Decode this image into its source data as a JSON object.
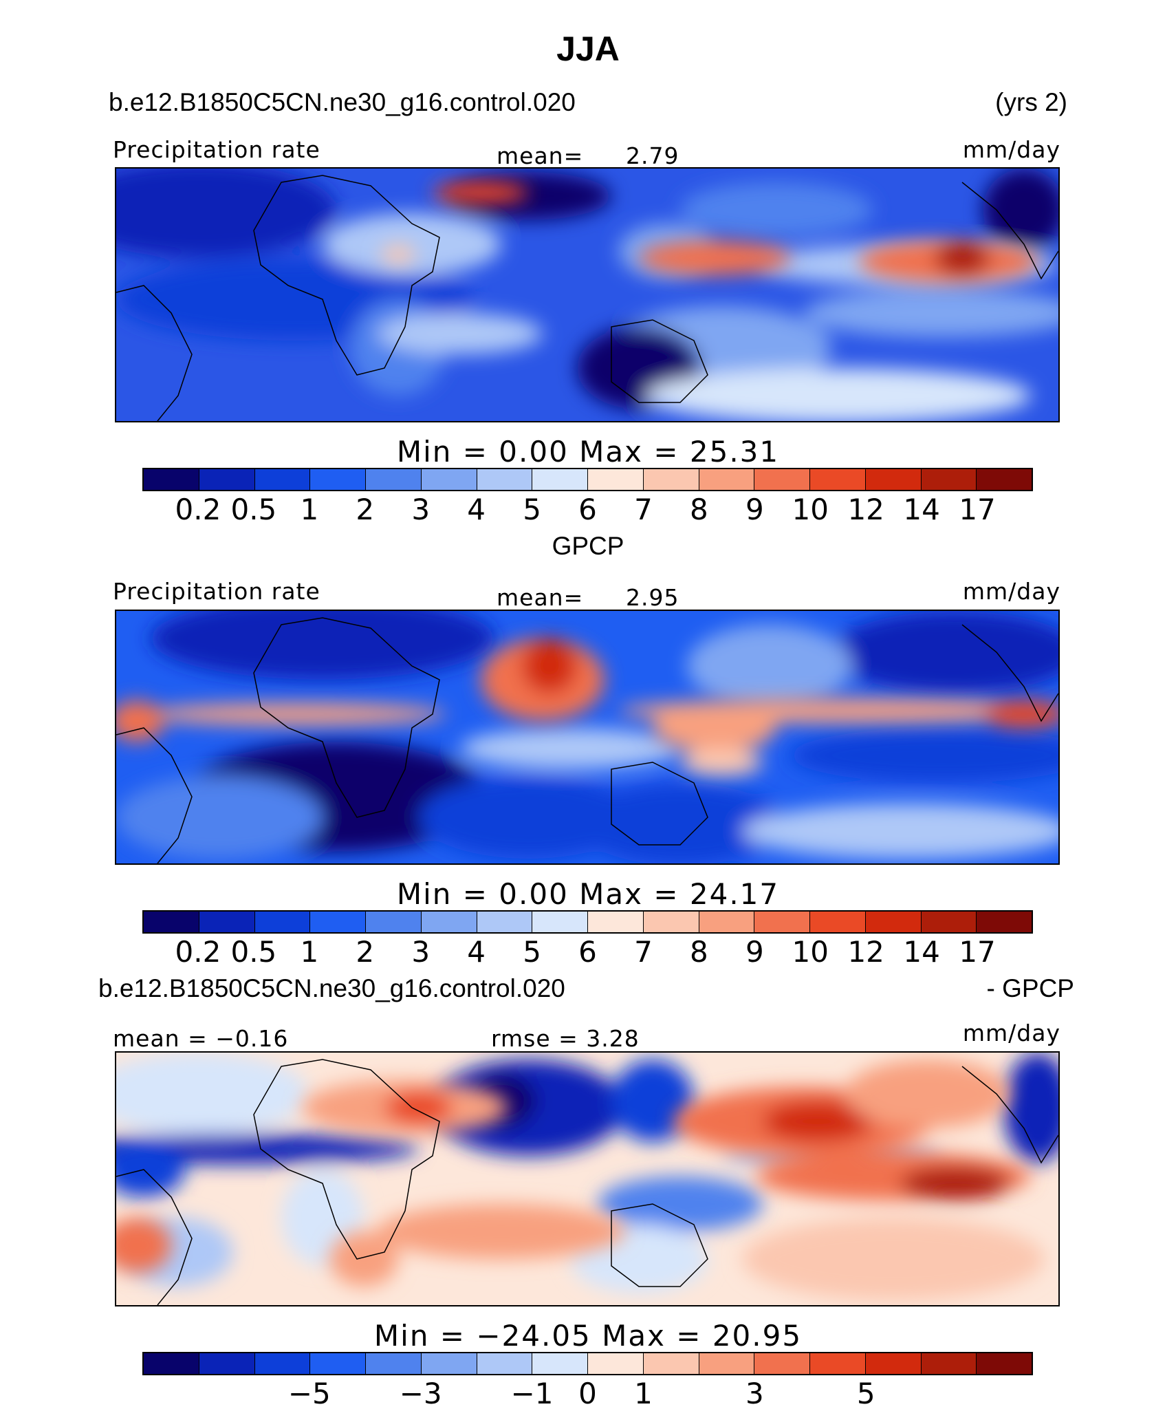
{
  "title": "JJA",
  "colors": [
    "#08036b",
    "#0a23b7",
    "#0d3fd9",
    "#1f5ef2",
    "#4f82ee",
    "#7fa6f2",
    "#aec8f7",
    "#d7e6fb",
    "#fde7da",
    "#fbc7b0",
    "#f8a07f",
    "#f1714e",
    "#ea4a26",
    "#d22a0d",
    "#ad1e0a",
    "#7e0a06"
  ],
  "panel1": {
    "case_name": "b.e12.B1850C5CN.ne30_g16.control.020",
    "years": "(yrs 2)",
    "variable": "Precipitation rate",
    "mean_label": "mean=",
    "mean_value": "2.79",
    "units": "mm/day",
    "minmax_text": "Min  =     0.00  Max  =    25.31"
  },
  "panel2": {
    "title": "GPCP",
    "variable": "Precipitation rate",
    "mean_label": "mean=",
    "mean_value": "2.95",
    "units": "mm/day",
    "minmax_text": "Min  =     0.00  Max  =    24.17"
  },
  "panel3": {
    "case_name": "b.e12.B1850C5CN.ne30_g16.control.020",
    "suffix": "- GPCP",
    "mean_text": "mean  =   −0.16",
    "rmse_text": "rmse  =     3.28",
    "units": "mm/day",
    "minmax_text": "Min  =  −24.05  Max  =    20.95"
  },
  "chart_data": [
    {
      "type": "heatmap",
      "title": "Precipitation rate",
      "subtitle": "b.e12.B1850C5CN.ne30_g16.control.020 (yrs 2)",
      "units": "mm/day",
      "mean": 2.79,
      "min": 0.0,
      "max": 25.31,
      "colorbar_levels": [
        0.2,
        0.5,
        1,
        2,
        3,
        4,
        5,
        6,
        7,
        8,
        9,
        10,
        12,
        14,
        17
      ],
      "colorbar_labels": [
        "0.2",
        "0.5",
        "1",
        "2",
        "3",
        "4",
        "5",
        "6",
        "7",
        "8",
        "9",
        "10",
        "12",
        "14",
        "17"
      ]
    },
    {
      "type": "heatmap",
      "title": "GPCP Precipitation rate",
      "units": "mm/day",
      "mean": 2.95,
      "min": 0.0,
      "max": 24.17,
      "colorbar_levels": [
        0.2,
        0.5,
        1,
        2,
        3,
        4,
        5,
        6,
        7,
        8,
        9,
        10,
        12,
        14,
        17
      ],
      "colorbar_labels": [
        "0.2",
        "0.5",
        "1",
        "2",
        "3",
        "4",
        "5",
        "6",
        "7",
        "8",
        "9",
        "10",
        "12",
        "14",
        "17"
      ]
    },
    {
      "type": "heatmap",
      "title": "b.e12.B1850C5CN.ne30_g16.control.020 - GPCP",
      "units": "mm/day",
      "mean": -0.16,
      "rmse": 3.28,
      "min": -24.05,
      "max": 20.95,
      "colorbar_levels": [
        -7,
        -6,
        -5,
        -4,
        -3,
        -2,
        -1,
        0,
        1,
        2,
        3,
        4,
        5,
        6,
        7
      ],
      "colorbar_labels": [
        "−5",
        "−3",
        "−1",
        "0",
        "1",
        "3",
        "5"
      ],
      "labeled_boundary_indices": [
        2,
        4,
        6,
        7,
        8,
        10,
        12
      ]
    }
  ]
}
